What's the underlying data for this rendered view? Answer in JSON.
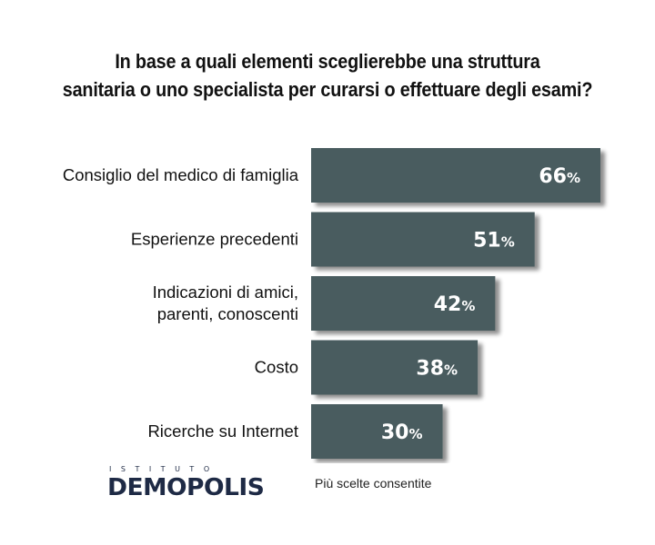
{
  "chart_data": {
    "type": "bar",
    "orientation": "horizontal",
    "title": "In base a quali elementi sceglierebbe una struttura sanitaria o uno specialista per curarsi o effettuare degli esami?",
    "title_lines": [
      "In base a quali elementi sceglierebbe una struttura",
      "sanitaria o uno specialista per curarsi o effettuare degli esami?"
    ],
    "categories": [
      "Consiglio del medico di famiglia",
      "Esperienze precedenti",
      "Indicazioni di amici, parenti, conoscenti",
      "Costo",
      "Ricerche su Internet"
    ],
    "category_lines": [
      [
        "Consiglio del medico di famiglia"
      ],
      [
        "Esperienze precedenti"
      ],
      [
        "Indicazioni di amici,",
        "parenti, conoscenti"
      ],
      [
        "Costo"
      ],
      [
        "Ricerche su Internet"
      ]
    ],
    "values": [
      66,
      51,
      42,
      38,
      30
    ],
    "value_suffix": "%",
    "bar_color": "#4a5b5e",
    "grid": false
  },
  "logo": {
    "top_text": "ISTITUTO",
    "main_text": "DEMOPOLIS"
  },
  "note": "Più scelte consentite"
}
